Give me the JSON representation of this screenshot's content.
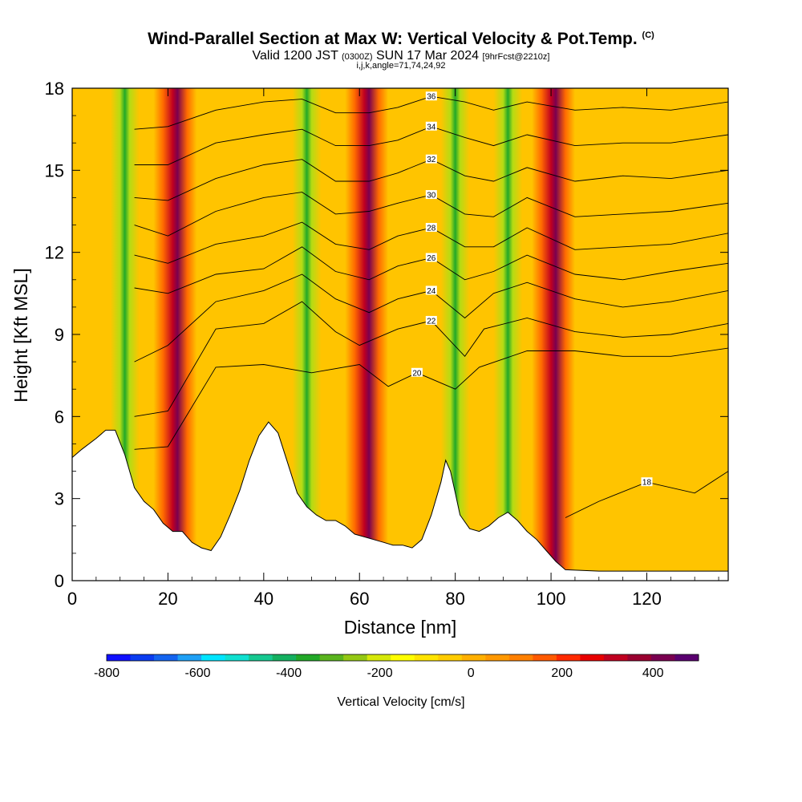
{
  "title": {
    "main": "Wind-Parallel Section at Max W: Vertical Velocity & Pot.Temp.",
    "unit": "(C)",
    "valid_prefix": "Valid 1200 JST",
    "valid_z": "(0300Z)",
    "valid_date": "SUN 17 Mar 2024",
    "forecast": "[9hrFcst@2210z]",
    "indices": "i,j,k,angle=71,74,24,92"
  },
  "chart_data": {
    "type": "heatmap",
    "xlabel": "Distance [nm]",
    "ylabel": "Height [Kft MSL]",
    "xlim": [
      0,
      137
    ],
    "ylim": [
      0,
      18
    ],
    "x_ticks": [
      "0",
      "20",
      "40",
      "60",
      "80",
      "100",
      "120"
    ],
    "y_ticks": [
      "0",
      "3",
      "6",
      "9",
      "12",
      "15",
      "18"
    ],
    "x_tick_values": [
      0,
      20,
      40,
      60,
      80,
      100,
      120
    ],
    "y_tick_values": [
      0,
      3,
      6,
      9,
      12,
      15,
      18
    ],
    "colorbar": {
      "label": "Vertical Velocity [cm/s]",
      "range": [
        -800,
        500
      ],
      "tick_labels": [
        "-800",
        "-600",
        "-400",
        "-200",
        "0",
        "200",
        "400"
      ],
      "tick_values": [
        -800,
        -600,
        -400,
        -200,
        0,
        200,
        400
      ],
      "colors": [
        "#1010ff",
        "#0b3cf0",
        "#1464ef",
        "#1fa0f5",
        "#00e5ff",
        "#10e0d0",
        "#16c890",
        "#14b060",
        "#22a828",
        "#5ab41e",
        "#94c814",
        "#d6e80a",
        "#ffff00",
        "#ffe400",
        "#ffcc00",
        "#ffb000",
        "#ff9800",
        "#ff8000",
        "#ff5a00",
        "#ff2a00",
        "#e80000",
        "#c00020",
        "#9a0030",
        "#7a0050",
        "#5a0070"
      ]
    },
    "updrafts_nm": [
      21,
      61,
      100
    ],
    "downdrafts_nm": [
      11,
      49,
      80,
      91
    ],
    "terrain_kft": [
      [
        0,
        4.5
      ],
      [
        2,
        4.8
      ],
      [
        5,
        5.2
      ],
      [
        7,
        5.5
      ],
      [
        9,
        5.5
      ],
      [
        11,
        4.6
      ],
      [
        13,
        3.4
      ],
      [
        15,
        2.9
      ],
      [
        17,
        2.6
      ],
      [
        19,
        2.1
      ],
      [
        21,
        1.8
      ],
      [
        23,
        1.8
      ],
      [
        25,
        1.4
      ],
      [
        27,
        1.2
      ],
      [
        29,
        1.1
      ],
      [
        31,
        1.6
      ],
      [
        33,
        2.4
      ],
      [
        35,
        3.3
      ],
      [
        37,
        4.4
      ],
      [
        39,
        5.3
      ],
      [
        41,
        5.8
      ],
      [
        43,
        5.4
      ],
      [
        45,
        4.3
      ],
      [
        47,
        3.2
      ],
      [
        49,
        2.7
      ],
      [
        51,
        2.4
      ],
      [
        53,
        2.2
      ],
      [
        55,
        2.2
      ],
      [
        57,
        2.0
      ],
      [
        59,
        1.7
      ],
      [
        61,
        1.6
      ],
      [
        63,
        1.5
      ],
      [
        65,
        1.4
      ],
      [
        67,
        1.3
      ],
      [
        69,
        1.3
      ],
      [
        71,
        1.2
      ],
      [
        73,
        1.5
      ],
      [
        75,
        2.4
      ],
      [
        77,
        3.6
      ],
      [
        78,
        4.4
      ],
      [
        79,
        4.0
      ],
      [
        80,
        3.2
      ],
      [
        81,
        2.4
      ],
      [
        83,
        1.9
      ],
      [
        85,
        1.8
      ],
      [
        87,
        2.0
      ],
      [
        89,
        2.3
      ],
      [
        91,
        2.5
      ],
      [
        93,
        2.2
      ],
      [
        95,
        1.8
      ],
      [
        97,
        1.5
      ],
      [
        99,
        1.1
      ],
      [
        101,
        0.7
      ],
      [
        103,
        0.4
      ],
      [
        110,
        0.35
      ],
      [
        120,
        0.35
      ],
      [
        130,
        0.35
      ],
      [
        137,
        0.35
      ]
    ],
    "isotherms_c": [
      {
        "label": "18",
        "pts": [
          [
            103,
            2.3
          ],
          [
            110,
            2.9
          ],
          [
            120,
            3.6
          ],
          [
            130,
            3.2
          ],
          [
            137,
            4.0
          ]
        ]
      },
      {
        "label": "20",
        "pts": [
          [
            13,
            4.8
          ],
          [
            20,
            4.9
          ],
          [
            30,
            7.8
          ],
          [
            40,
            7.9
          ],
          [
            50,
            7.6
          ],
          [
            60,
            7.9
          ],
          [
            66,
            7.1
          ],
          [
            72,
            7.6
          ],
          [
            80,
            7.0
          ],
          [
            85,
            7.8
          ],
          [
            95,
            8.4
          ],
          [
            105,
            8.4
          ],
          [
            115,
            8.2
          ],
          [
            125,
            8.2
          ],
          [
            137,
            8.5
          ]
        ]
      },
      {
        "label": "22",
        "pts": [
          [
            13,
            6.0
          ],
          [
            20,
            6.2
          ],
          [
            30,
            9.2
          ],
          [
            40,
            9.4
          ],
          [
            48,
            10.2
          ],
          [
            55,
            9.1
          ],
          [
            60,
            8.6
          ],
          [
            68,
            9.2
          ],
          [
            75,
            9.5
          ],
          [
            82,
            8.2
          ],
          [
            86,
            9.2
          ],
          [
            95,
            9.6
          ],
          [
            105,
            9.1
          ],
          [
            115,
            8.9
          ],
          [
            125,
            9.0
          ],
          [
            137,
            9.4
          ]
        ]
      },
      {
        "label": "24",
        "pts": [
          [
            13,
            8.0
          ],
          [
            20,
            8.6
          ],
          [
            30,
            10.2
          ],
          [
            40,
            10.6
          ],
          [
            48,
            11.2
          ],
          [
            55,
            10.3
          ],
          [
            62,
            9.8
          ],
          [
            68,
            10.3
          ],
          [
            75,
            10.6
          ],
          [
            82,
            9.6
          ],
          [
            88,
            10.5
          ],
          [
            95,
            10.9
          ],
          [
            105,
            10.3
          ],
          [
            115,
            10.0
          ],
          [
            125,
            10.2
          ],
          [
            137,
            10.6
          ]
        ]
      },
      {
        "label": "26",
        "pts": [
          [
            13,
            10.7
          ],
          [
            20,
            10.5
          ],
          [
            30,
            11.2
          ],
          [
            40,
            11.4
          ],
          [
            48,
            12.2
          ],
          [
            55,
            11.3
          ],
          [
            62,
            11.0
          ],
          [
            68,
            11.5
          ],
          [
            75,
            11.8
          ],
          [
            82,
            11.0
          ],
          [
            88,
            11.3
          ],
          [
            95,
            11.9
          ],
          [
            105,
            11.2
          ],
          [
            115,
            11.0
          ],
          [
            125,
            11.3
          ],
          [
            137,
            11.6
          ]
        ]
      },
      {
        "label": "28",
        "pts": [
          [
            13,
            11.9
          ],
          [
            20,
            11.6
          ],
          [
            30,
            12.3
          ],
          [
            40,
            12.6
          ],
          [
            48,
            13.1
          ],
          [
            55,
            12.3
          ],
          [
            62,
            12.1
          ],
          [
            68,
            12.6
          ],
          [
            75,
            12.9
          ],
          [
            82,
            12.2
          ],
          [
            88,
            12.2
          ],
          [
            95,
            12.9
          ],
          [
            105,
            12.1
          ],
          [
            115,
            12.2
          ],
          [
            125,
            12.3
          ],
          [
            137,
            12.7
          ]
        ]
      },
      {
        "label": "30",
        "pts": [
          [
            13,
            13.0
          ],
          [
            20,
            12.6
          ],
          [
            30,
            13.5
          ],
          [
            40,
            14.0
          ],
          [
            48,
            14.2
          ],
          [
            55,
            13.4
          ],
          [
            62,
            13.5
          ],
          [
            68,
            13.8
          ],
          [
            75,
            14.1
          ],
          [
            82,
            13.4
          ],
          [
            88,
            13.3
          ],
          [
            95,
            14.0
          ],
          [
            105,
            13.3
          ],
          [
            115,
            13.4
          ],
          [
            125,
            13.5
          ],
          [
            137,
            13.8
          ]
        ]
      },
      {
        "label": "32",
        "pts": [
          [
            13,
            14.0
          ],
          [
            20,
            13.9
          ],
          [
            30,
            14.7
          ],
          [
            40,
            15.2
          ],
          [
            48,
            15.4
          ],
          [
            55,
            14.6
          ],
          [
            62,
            14.6
          ],
          [
            68,
            14.9
          ],
          [
            75,
            15.4
          ],
          [
            82,
            14.8
          ],
          [
            88,
            14.6
          ],
          [
            95,
            15.1
          ],
          [
            105,
            14.6
          ],
          [
            115,
            14.8
          ],
          [
            125,
            14.7
          ],
          [
            137,
            15.0
          ]
        ]
      },
      {
        "label": "34",
        "pts": [
          [
            13,
            15.2
          ],
          [
            20,
            15.2
          ],
          [
            30,
            16.0
          ],
          [
            40,
            16.3
          ],
          [
            48,
            16.5
          ],
          [
            55,
            15.9
          ],
          [
            62,
            15.9
          ],
          [
            68,
            16.1
          ],
          [
            75,
            16.6
          ],
          [
            82,
            16.2
          ],
          [
            88,
            15.9
          ],
          [
            95,
            16.3
          ],
          [
            105,
            15.9
          ],
          [
            115,
            16.0
          ],
          [
            125,
            16.0
          ],
          [
            137,
            16.3
          ]
        ]
      },
      {
        "label": "36",
        "pts": [
          [
            13,
            16.5
          ],
          [
            20,
            16.6
          ],
          [
            30,
            17.2
          ],
          [
            40,
            17.5
          ],
          [
            48,
            17.6
          ],
          [
            55,
            17.1
          ],
          [
            62,
            17.1
          ],
          [
            68,
            17.3
          ],
          [
            75,
            17.7
          ],
          [
            82,
            17.5
          ],
          [
            88,
            17.2
          ],
          [
            95,
            17.5
          ],
          [
            105,
            17.2
          ],
          [
            115,
            17.3
          ],
          [
            125,
            17.2
          ],
          [
            137,
            17.5
          ]
        ]
      }
    ]
  }
}
